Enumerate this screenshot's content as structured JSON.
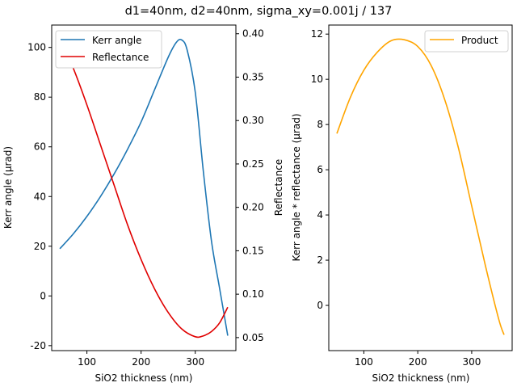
{
  "figure": {
    "title": "d1=40nm, d2=40nm, sigma_xy=0.001j / 137"
  },
  "colors": {
    "kerr": "#1f77b4",
    "reflectance": "#e00000",
    "product": "#ffa500"
  },
  "chart_data": [
    {
      "type": "line",
      "panel": "left",
      "xlabel": "SiO2 thickness (nm)",
      "ylabel": "Kerr angle (µrad)",
      "ylabel_right": "Reflectance",
      "xlim": [
        35,
        375
      ],
      "ylim": [
        -22,
        109
      ],
      "ylim_right": [
        0.035,
        0.41
      ],
      "xticks": [
        100,
        200,
        300
      ],
      "yticks": [
        -20,
        0,
        20,
        40,
        60,
        80,
        100
      ],
      "yticks_right": [
        0.05,
        0.1,
        0.15,
        0.2,
        0.25,
        0.3,
        0.35,
        0.4
      ],
      "grid": false,
      "legend": {
        "position": "top-left",
        "entries": [
          "Kerr angle",
          "Reflectance"
        ]
      },
      "series": [
        {
          "name": "Kerr angle",
          "axis": "left",
          "x": [
            50,
            75,
            100,
            125,
            150,
            175,
            200,
            225,
            250,
            265,
            275,
            285,
            300,
            315,
            330,
            345,
            360
          ],
          "y": [
            19,
            25,
            32,
            40,
            49,
            59,
            70,
            83,
            96,
            102,
            103,
            99,
            82,
            50,
            22,
            3,
            -16
          ]
        },
        {
          "name": "Reflectance",
          "axis": "right",
          "x": [
            50,
            75,
            100,
            125,
            150,
            175,
            200,
            225,
            250,
            275,
            300,
            315,
            330,
            345,
            360
          ],
          "y": [
            0.395,
            0.36,
            0.318,
            0.272,
            0.226,
            0.18,
            0.14,
            0.106,
            0.079,
            0.06,
            0.051,
            0.052,
            0.057,
            0.067,
            0.085
          ]
        }
      ]
    },
    {
      "type": "line",
      "panel": "right",
      "xlabel": "SiO2 thickness (nm)",
      "ylabel": "Kerr angle * reflectance (µrad)",
      "xlim": [
        35,
        375
      ],
      "ylim": [
        -2,
        12.4
      ],
      "xticks": [
        100,
        200,
        300
      ],
      "yticks": [
        0,
        2,
        4,
        6,
        8,
        10,
        12
      ],
      "grid": false,
      "legend": {
        "position": "top-right",
        "entries": [
          "Product"
        ]
      },
      "series": [
        {
          "name": "Product",
          "x": [
            50,
            75,
            100,
            125,
            150,
            175,
            200,
            225,
            250,
            275,
            300,
            325,
            350,
            360
          ],
          "y": [
            7.6,
            9.2,
            10.4,
            11.2,
            11.7,
            11.75,
            11.45,
            10.6,
            9.1,
            7.0,
            4.4,
            1.8,
            -0.6,
            -1.3
          ]
        }
      ]
    }
  ]
}
